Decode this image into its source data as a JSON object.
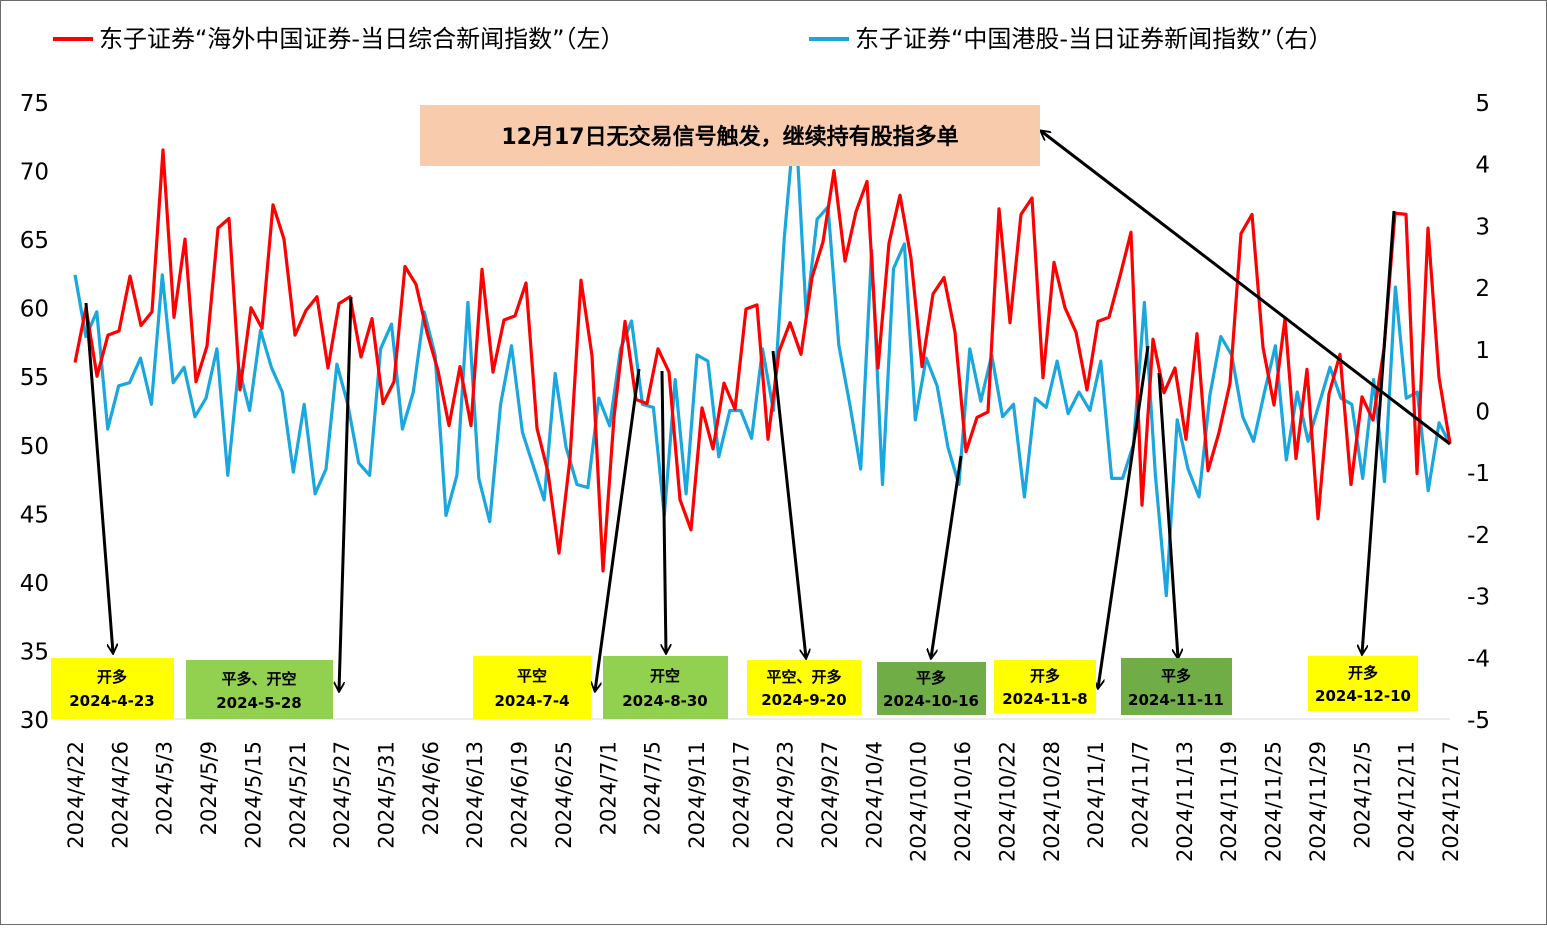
{
  "chart_data": {
    "type": "line",
    "legend": [
      {
        "label": "东子证券“海外中国证券-当日综合新闻指数”（左）",
        "color": "#ff0000"
      },
      {
        "label": "东子证券“中国港股-当日证券新闻指数”（右）",
        "color": "#1aa7e0"
      }
    ],
    "legend_placement": "top",
    "y_left": {
      "min": 30,
      "max": 75,
      "ticks": [
        "75",
        "70",
        "65",
        "60",
        "55",
        "50",
        "45",
        "40",
        "35",
        "30"
      ]
    },
    "y_right": {
      "min": -5,
      "max": 5,
      "ticks": [
        "5",
        "4",
        "3",
        "2",
        "1",
        "0",
        "-1",
        "-2",
        "-3",
        "-4",
        "-5"
      ]
    },
    "x_tick_labels": [
      "2024/4/22",
      "2024/4/26",
      "2024/5/3",
      "2024/5/9",
      "2024/5/15",
      "2024/5/21",
      "2024/5/27",
      "2024/5/31",
      "2024/6/6",
      "2024/6/13",
      "2024/6/19",
      "2024/6/25",
      "2024/7/1",
      "2024/7/5",
      "2024/9/11",
      "2024/9/17",
      "2024/9/23",
      "2024/9/27",
      "2024/10/4",
      "2024/10/10",
      "2024/10/16",
      "2024/10/22",
      "2024/10/28",
      "2024/11/1",
      "2024/11/7",
      "2024/11/13",
      "2024/11/19",
      "2024/11/25",
      "2024/11/29",
      "2024/12/5",
      "2024/12/11",
      "2024/12/17"
    ],
    "grid": "none",
    "series": [
      {
        "name": "东子证券“海外中国证券-当日综合新闻指数”（左）",
        "axis": "left",
        "color": "#ff0000",
        "values": [
          56,
          60,
          55,
          58,
          58.3,
          62.3,
          58.7,
          59.7,
          71.5,
          59.3,
          65,
          54.6,
          57.2,
          65.8,
          66.5,
          54,
          60,
          58.5,
          67.5,
          65,
          58,
          59.8,
          60.8,
          55.6,
          60.3,
          60.8,
          56.4,
          59.2,
          53,
          54.6,
          63,
          61.7,
          58.2,
          55.4,
          51.4,
          55.7,
          51.4,
          62.8,
          55.3,
          59.1,
          59.4,
          61.8,
          51.2,
          48,
          42.1,
          49,
          62,
          56.5,
          40.8,
          52,
          59,
          53.3,
          53,
          57,
          55.3,
          46,
          43.8,
          52.7,
          49.7,
          54.5,
          52.6,
          59.9,
          60.2,
          50.4,
          56.8,
          58.9,
          56.6,
          62.2,
          64.8,
          70,
          63.4,
          67,
          69.2,
          55.6,
          64.7,
          68.2,
          63.6,
          55.7,
          61,
          62.2,
          58.2,
          49.5,
          52,
          52.4,
          67.2,
          58.9,
          66.8,
          68,
          54.9,
          63.3,
          60,
          58.2,
          54,
          59,
          59.3,
          62.3,
          65.5,
          45.6,
          57.7,
          53.8,
          55.6,
          50.4,
          58.1,
          48.1,
          50.9,
          54.5,
          65.4,
          66.8,
          57.1,
          52.9,
          59.2,
          49,
          55.5,
          44.6,
          53.7,
          56.6,
          47.1,
          53.5,
          51.8,
          57,
          66.9,
          66.8,
          47.9,
          65.8,
          54.9,
          50.1
        ]
      },
      {
        "name": "东子证券“中国港股-当日证券新闻指数”（右）",
        "axis": "right",
        "color": "#1aa7e0",
        "values": [
          2.2,
          1.2,
          1.6,
          -0.3,
          0.4,
          0.45,
          0.85,
          0.1,
          2.2,
          0.45,
          0.7,
          -0.1,
          0.2,
          1,
          -1.05,
          0.7,
          0,
          1.3,
          0.7,
          0.3,
          -1,
          0.1,
          -1.35,
          -0.95,
          0.75,
          0.1,
          -0.85,
          -1.05,
          1,
          1.4,
          -0.3,
          0.3,
          1.6,
          0.9,
          -1.7,
          -1.05,
          1.75,
          -1.1,
          -1.8,
          0.1,
          1.05,
          -0.35,
          -0.9,
          -1.45,
          0.6,
          -0.6,
          -1.2,
          -1.25,
          0.2,
          -0.25,
          1,
          1.45,
          0.1,
          0.05,
          -1.7,
          0.5,
          -1.35,
          0.9,
          0.8,
          -0.75,
          0,
          0,
          -0.45,
          1,
          0,
          2.8,
          4.8,
          1.55,
          3.1,
          3.3,
          1.05,
          0.1,
          -0.95,
          2.6,
          -1.2,
          2.3,
          2.7,
          -0.15,
          0.85,
          0.4,
          -0.6,
          -1.2,
          1,
          0.15,
          0.9,
          -0.1,
          0.1,
          -1.4,
          0.2,
          0.05,
          0.8,
          -0.05,
          0.3,
          0,
          0.8,
          -1.1,
          -1.1,
          -0.55,
          1.75,
          -1.05,
          -3,
          -0.15,
          -0.95,
          -1.4,
          0.25,
          1.2,
          0.9,
          -0.1,
          -0.5,
          0.3,
          1.05,
          -0.8,
          0.3,
          -0.5,
          0.1,
          0.7,
          0.2,
          0.1,
          -1.1,
          0.5,
          -1.15,
          2,
          0.2,
          0.3,
          -1.3,
          -0.2,
          -0.55
        ]
      }
    ],
    "annotations": {
      "callout": "12月17日无交易信号触发，继续持有股指多单",
      "callout_color": "#f8cbad",
      "signals": [
        {
          "action": "开多",
          "date": "2024-4-23",
          "color": "#ffff00"
        },
        {
          "action": "平多、开空",
          "date": "2024-5-28",
          "color": "#92d050"
        },
        {
          "action": "平空",
          "date": "2024-7-4",
          "color": "#ffff00"
        },
        {
          "action": "开空",
          "date": "2024-8-30",
          "color": "#92d050"
        },
        {
          "action": "平空、开多",
          "date": "2024-9-20",
          "color": "#ffff00"
        },
        {
          "action": "平多",
          "date": "2024-10-16",
          "color": "#70ad47"
        },
        {
          "action": "开多",
          "date": "2024-11-8",
          "color": "#ffff00"
        },
        {
          "action": "平多",
          "date": "2024-11-11",
          "color": "#70ad47"
        },
        {
          "action": "开多",
          "date": "2024-12-10",
          "color": "#ffff00"
        }
      ]
    }
  }
}
